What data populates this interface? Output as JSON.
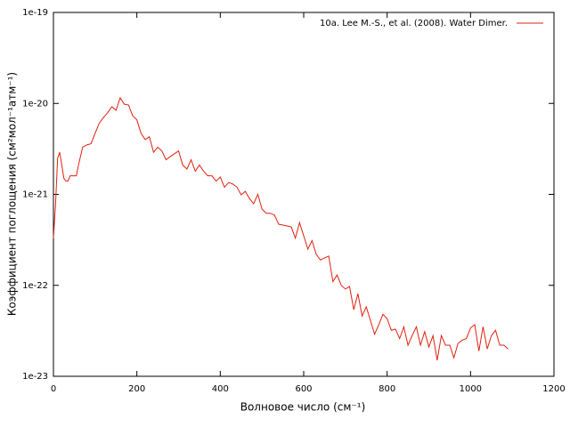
{
  "chart_data": {
    "type": "line",
    "x_label": "Волновое число (см⁻¹)",
    "y_label": "Коэффициент поглощения (см²мол⁻¹атм⁻¹)",
    "log_y": true,
    "legend": "top-right",
    "x": [
      0,
      5,
      10,
      15,
      20,
      25,
      30,
      35,
      40,
      50,
      55,
      60,
      70,
      80,
      90,
      100,
      110,
      120,
      130,
      140,
      150,
      160,
      170,
      180,
      190,
      200,
      210,
      220,
      230,
      240,
      250,
      260,
      270,
      280,
      290,
      300,
      310,
      320,
      330,
      340,
      350,
      360,
      370,
      380,
      390,
      400,
      410,
      420,
      430,
      440,
      450,
      460,
      470,
      480,
      490,
      500,
      510,
      520,
      530,
      540,
      550,
      560,
      570,
      580,
      590,
      600,
      610,
      620,
      630,
      640,
      650,
      660,
      670,
      680,
      690,
      700,
      710,
      720,
      730,
      740,
      750,
      760,
      770,
      780,
      790,
      800,
      810,
      820,
      830,
      840,
      850,
      860,
      870,
      880,
      890,
      900,
      910,
      920,
      930,
      940,
      950,
      960,
      970,
      980,
      990,
      1000,
      1010,
      1020,
      1030,
      1040,
      1050,
      1060,
      1070,
      1080,
      1090
    ],
    "series": [
      {
        "name": "10a. Lee M.-S., et al. (2008). Water Dimer.",
        "color": "#e02010",
        "values": [
          3.3e-22,
          7.7e-22,
          2.5e-21,
          2.9e-21,
          2.1e-21,
          1.5e-21,
          1.4e-21,
          1.4e-21,
          1.6e-21,
          1.6e-21,
          1.6e-21,
          2.1e-21,
          3.3e-21,
          3.5e-21,
          3.6e-21,
          4.7e-21,
          6.1e-21,
          7e-21,
          7.9e-21,
          9.2e-21,
          8.4e-21,
          1.15e-20,
          9.8e-21,
          9.6e-21,
          7.3e-21,
          6.6e-21,
          4.7e-21,
          4e-21,
          4.3e-21,
          2.9e-21,
          3.3e-21,
          3e-21,
          2.4e-21,
          2.6e-21,
          2.8e-21,
          3e-21,
          2.1e-21,
          1.9e-21,
          2.4e-21,
          1.8e-21,
          2.1e-21,
          1.8e-21,
          1.6e-21,
          1.6e-21,
          1.4e-21,
          1.55e-21,
          1.2e-21,
          1.35e-21,
          1.3e-21,
          1.2e-21,
          9.9e-22,
          1.08e-21,
          9e-22,
          7.9e-22,
          1e-21,
          6.9e-22,
          6.2e-22,
          6.2e-22,
          5.9e-22,
          4.7e-22,
          4.6e-22,
          4.5e-22,
          4.4e-22,
          3.3e-22,
          4.9e-22,
          3.5e-22,
          2.5e-22,
          3.1e-22,
          2.2e-22,
          1.9e-22,
          2e-22,
          2.1e-22,
          1.1e-22,
          1.3e-22,
          1e-22,
          9.1e-23,
          9.7e-23,
          5.4e-23,
          8.1e-23,
          4.6e-23,
          5.8e-23,
          4.1e-23,
          2.9e-23,
          3.7e-23,
          4.8e-23,
          4.3e-23,
          3.2e-23,
          3.3e-23,
          2.6e-23,
          3.5e-23,
          2.2e-23,
          2.8e-23,
          3.5e-23,
          2.2e-23,
          3.1e-23,
          2.1e-23,
          2.8e-23,
          1.5e-23,
          2.8e-23,
          2.2e-23,
          2.2e-23,
          1.6e-23,
          2.3e-23,
          2.5e-23,
          2.6e-23,
          3.4e-23,
          3.7e-23,
          1.9e-23,
          3.5e-23,
          2e-23,
          2.8e-23,
          3.2e-23,
          2.2e-23,
          2.2e-23,
          2e-23
        ]
      }
    ],
    "xlim": [
      0,
      1200
    ],
    "xticks": [
      0,
      200,
      400,
      600,
      800,
      1000,
      1200
    ],
    "ylim": [
      1e-23,
      1e-19
    ],
    "yticks": [
      {
        "value": 1e-23,
        "label": "1e-23"
      },
      {
        "value": 1e-22,
        "label": "1e-22"
      },
      {
        "value": 1e-21,
        "label": "1e-21"
      },
      {
        "value": 1e-20,
        "label": "1e-20"
      },
      {
        "value": 1e-19,
        "label": "1e-19"
      }
    ]
  }
}
